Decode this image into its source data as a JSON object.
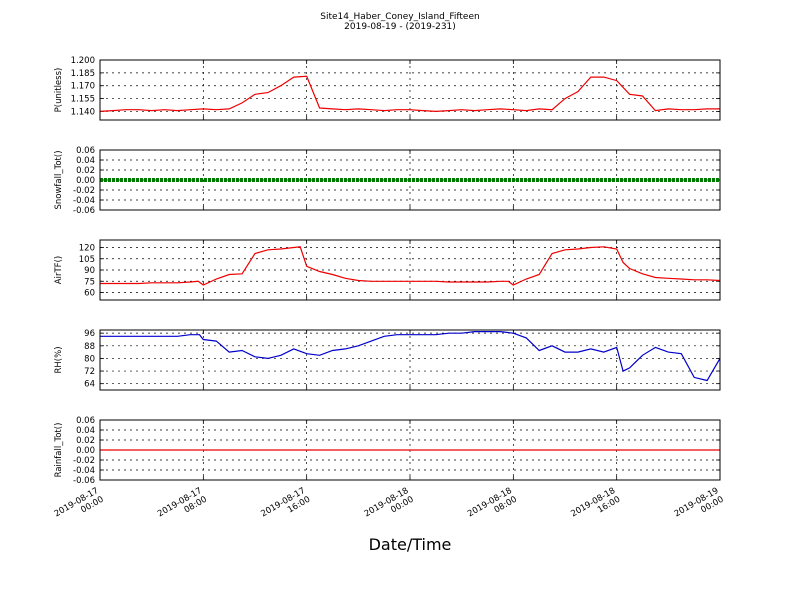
{
  "title": "Site14_Haber_Coney_Island_Fifteen",
  "subtitle": "2019-08-19 - (2019-231)",
  "xlabel": "Date/Time",
  "xtick_labels": [
    [
      "2019-08-17",
      "00:00"
    ],
    [
      "2019-08-17",
      "08:00"
    ],
    [
      "2019-08-17",
      "16:00"
    ],
    [
      "2019-08-18",
      "00:00"
    ],
    [
      "2019-08-18",
      "08:00"
    ],
    [
      "2019-08-18",
      "16:00"
    ],
    [
      "2019-08-19",
      "00:00"
    ]
  ],
  "colors": {
    "red": "#ee0000",
    "green": "#007a00",
    "blue": "#0000cc",
    "grid": "#000000"
  },
  "chart_data": [
    {
      "type": "line",
      "ylabel": "P(unitless)",
      "x_range": [
        "2019-08-17 00:00",
        "2019-08-19 00:00"
      ],
      "ylim": [
        1.13,
        1.2
      ],
      "yticks": [
        "1.140",
        "1.155",
        "1.170",
        "1.185",
        "1.200"
      ],
      "ytick_values": [
        1.14,
        1.155,
        1.17,
        1.185,
        1.2
      ],
      "grid": true,
      "color": "red",
      "series": [
        {
          "x_hours": [
            0,
            1,
            2,
            3,
            4,
            5,
            6,
            7,
            8,
            9,
            10,
            11,
            12,
            13,
            14,
            15,
            16,
            17,
            18,
            19,
            20,
            21,
            22,
            23,
            24,
            25,
            26,
            27,
            28,
            29,
            30,
            31,
            32,
            33,
            34,
            35,
            36,
            37,
            38,
            39,
            40,
            41,
            42,
            43,
            44,
            45,
            46,
            47,
            48
          ],
          "values": [
            1.14,
            1.141,
            1.142,
            1.142,
            1.141,
            1.142,
            1.141,
            1.142,
            1.143,
            1.142,
            1.143,
            1.15,
            1.16,
            1.162,
            1.17,
            1.18,
            1.181,
            1.144,
            1.143,
            1.142,
            1.143,
            1.142,
            1.141,
            1.142,
            1.142,
            1.141,
            1.14,
            1.141,
            1.142,
            1.141,
            1.142,
            1.143,
            1.142,
            1.141,
            1.143,
            1.142,
            1.155,
            1.163,
            1.18,
            1.18,
            1.176,
            1.16,
            1.158,
            1.141,
            1.143,
            1.142,
            1.142,
            1.143,
            1.143
          ]
        }
      ]
    },
    {
      "type": "line",
      "ylabel": "Snowfall_Tot()",
      "x_range": [
        "2019-08-17 00:00",
        "2019-08-19 00:00"
      ],
      "ylim": [
        -0.06,
        0.06
      ],
      "yticks": [
        "-0.06",
        "-0.04",
        "-0.02",
        "0.00",
        "0.02",
        "0.04",
        "0.06"
      ],
      "ytick_values": [
        -0.06,
        -0.04,
        -0.02,
        0,
        0.02,
        0.04,
        0.06
      ],
      "grid": true,
      "color": "green",
      "series": [
        {
          "x_hours": [
            0,
            48
          ],
          "values": [
            0,
            0
          ]
        }
      ]
    },
    {
      "type": "line",
      "ylabel": "AirTF()",
      "x_range": [
        "2019-08-17 00:00",
        "2019-08-19 00:00"
      ],
      "ylim": [
        50,
        130
      ],
      "yticks": [
        "60",
        "75",
        "90",
        "105",
        "120"
      ],
      "ytick_values": [
        60,
        75,
        90,
        105,
        120
      ],
      "grid": true,
      "color": "red",
      "series": [
        {
          "x_hours": [
            0,
            1,
            2,
            3,
            4,
            5,
            6,
            7,
            7.6,
            8,
            9,
            10,
            11,
            12,
            13,
            14,
            15,
            15.5,
            16,
            17,
            18,
            19,
            20,
            21,
            22,
            23,
            24,
            25,
            26,
            27,
            28,
            29,
            30,
            31,
            31.6,
            32,
            33,
            34,
            35,
            36,
            37,
            38,
            39,
            40,
            40.5,
            41,
            42,
            43,
            44,
            45,
            46,
            47,
            48
          ],
          "values": [
            72,
            72,
            72,
            72,
            73,
            73,
            73,
            74,
            75,
            70,
            78,
            84,
            85,
            112,
            117,
            118,
            120,
            121,
            95,
            88,
            84,
            79,
            76,
            75,
            75,
            75,
            75,
            75,
            75,
            74,
            74,
            74,
            74,
            75,
            75,
            70,
            78,
            84,
            112,
            117,
            118,
            120,
            121,
            118,
            100,
            92,
            85,
            80,
            79,
            78,
            77,
            77,
            76
          ]
        }
      ]
    },
    {
      "type": "line",
      "ylabel": "RH(%)",
      "x_range": [
        "2019-08-17 00:00",
        "2019-08-19 00:00"
      ],
      "ylim": [
        60,
        98
      ],
      "yticks": [
        "64",
        "72",
        "80",
        "88",
        "96"
      ],
      "ytick_values": [
        64,
        72,
        80,
        88,
        96
      ],
      "grid": true,
      "color": "blue",
      "series": [
        {
          "x_hours": [
            0,
            1,
            2,
            3,
            4,
            5,
            6,
            7,
            7.7,
            8,
            9,
            10,
            11,
            12,
            13,
            14,
            15,
            16,
            17,
            18,
            19,
            20,
            21,
            22,
            23,
            24,
            25,
            26,
            27,
            28,
            29,
            30,
            31,
            32,
            33,
            34,
            35,
            36,
            37,
            38,
            39,
            40,
            40.5,
            41,
            42,
            43,
            44,
            45,
            46,
            47,
            48
          ],
          "values": [
            94,
            94,
            94,
            94,
            94,
            94,
            94,
            95,
            95,
            92,
            91,
            84,
            85,
            81,
            80,
            82,
            86,
            83,
            82,
            85,
            86,
            88,
            91,
            94,
            95,
            95,
            95,
            95,
            96,
            96,
            97,
            97,
            97,
            96,
            93,
            85,
            88,
            84,
            84,
            86,
            84,
            87,
            72,
            74,
            82,
            87,
            84,
            83,
            68,
            66,
            80
          ]
        }
      ]
    },
    {
      "type": "line",
      "ylabel": "Rainfall_Tot()",
      "x_range": [
        "2019-08-17 00:00",
        "2019-08-19 00:00"
      ],
      "ylim": [
        -0.06,
        0.06
      ],
      "yticks": [
        "-0.06",
        "-0.04",
        "-0.02",
        "0.00",
        "0.02",
        "0.04",
        "0.06"
      ],
      "ytick_values": [
        -0.06,
        -0.04,
        -0.02,
        0,
        0.02,
        0.04,
        0.06
      ],
      "grid": true,
      "color": "red",
      "series": [
        {
          "x_hours": [
            0,
            48
          ],
          "values": [
            0,
            0
          ]
        }
      ]
    }
  ]
}
